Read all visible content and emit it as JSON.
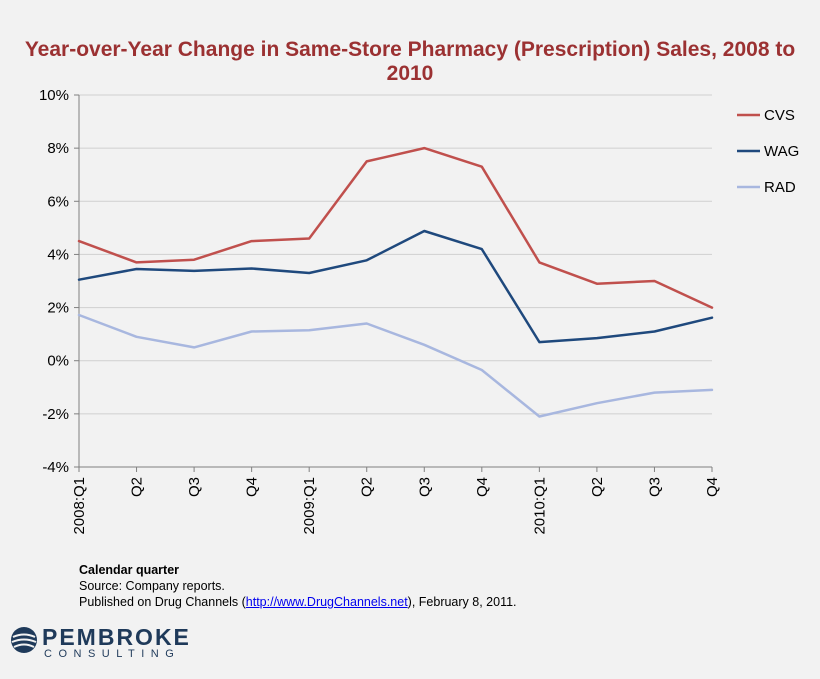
{
  "chart_data": {
    "type": "line",
    "title": "Year-over-Year Change in Same-Store Pharmacy (Prescription) Sales, 2008 to 2010",
    "xlabel": "Calendar quarter",
    "ylabel": "",
    "categories": [
      "2008:Q1",
      "Q2",
      "Q3",
      "Q4",
      "2009:Q1",
      "Q2",
      "Q3",
      "Q4",
      "2010:Q1",
      "Q2",
      "Q3",
      "Q4"
    ],
    "ylim": [
      -4,
      10
    ],
    "yticks": [
      -4,
      -2,
      0,
      2,
      4,
      6,
      8,
      10
    ],
    "ytick_labels": [
      "-4%",
      "-2%",
      "0%",
      "2%",
      "4%",
      "6%",
      "8%",
      "10%"
    ],
    "grid": "horizontal",
    "legend_position": "right",
    "series": [
      {
        "name": "CVS",
        "color": "#c0504d",
        "values": [
          4.5,
          3.7,
          3.8,
          4.5,
          4.6,
          7.5,
          8.0,
          7.3,
          3.7,
          2.9,
          3.0,
          2.0
        ]
      },
      {
        "name": "WAG",
        "color": "#1f497d",
        "values": [
          3.05,
          3.45,
          3.38,
          3.47,
          3.3,
          3.78,
          4.88,
          4.2,
          0.7,
          0.85,
          1.1,
          1.62
        ]
      },
      {
        "name": "RAD",
        "color": "#a8b7df",
        "values": [
          1.72,
          0.9,
          0.5,
          1.1,
          1.15,
          1.4,
          0.6,
          -0.35,
          -2.1,
          -1.6,
          -1.2,
          -1.1
        ]
      }
    ]
  },
  "footnote": {
    "xlabel": "Calendar quarter",
    "source": "Source: Company reports.",
    "published_prefix": "Published on Drug Channels (",
    "published_link": "http://www.DrugChannels.net",
    "published_suffix": "), February 8, 2011."
  },
  "logo": {
    "name": "PEMBROKE",
    "sub": "CONSULTING"
  }
}
